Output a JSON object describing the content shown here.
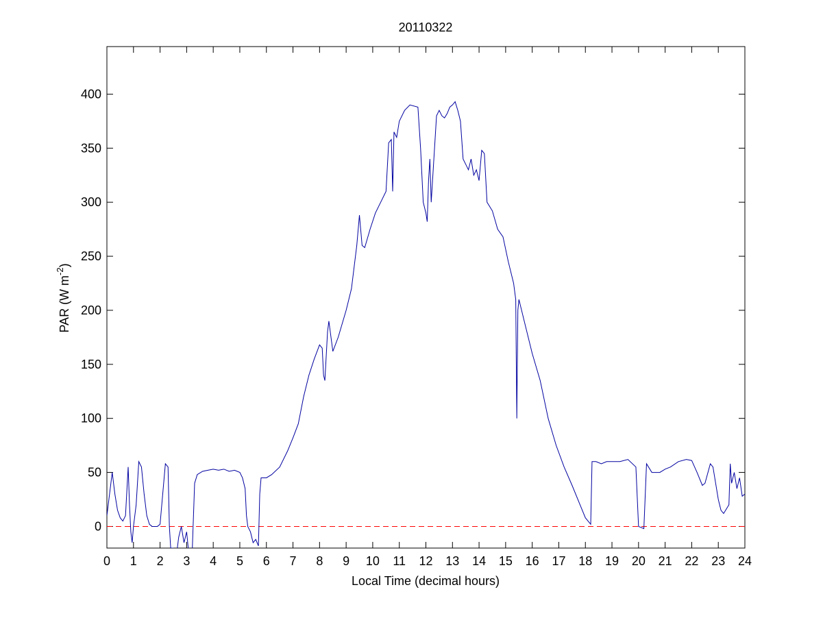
{
  "chart_data": {
    "type": "line",
    "title": "20110322",
    "x_label": "Local Time (decimal hours)",
    "y_label": {
      "text": "PAR (W m",
      "superscript": "-2",
      "suffix": ")"
    },
    "color": "#0000a0",
    "reference_line": {
      "value": 0,
      "color": "#ff0000",
      "dashed": true
    },
    "xlim": [
      0,
      24
    ],
    "xticks": [
      0,
      1,
      2,
      3,
      4,
      5,
      6,
      7,
      8,
      9,
      10,
      11,
      12,
      13,
      14,
      15,
      16,
      17,
      18,
      19,
      20,
      21,
      22,
      23,
      24
    ],
    "ylim": [
      -20,
      444
    ],
    "yticks": [
      0,
      50,
      100,
      150,
      200,
      250,
      300,
      350,
      400
    ],
    "x": [
      0,
      0.1,
      0.2,
      0.3,
      0.4,
      0.5,
      0.6,
      0.7,
      0.8,
      0.85,
      0.9,
      0.95,
      1.0,
      1.1,
      1.2,
      1.3,
      1.4,
      1.5,
      1.6,
      1.7,
      1.9,
      2.0,
      2.1,
      2.2,
      2.3,
      2.35,
      2.4,
      2.5,
      2.6,
      2.7,
      2.8,
      2.9,
      3.0,
      3.1,
      3.2,
      3.3,
      3.4,
      3.6,
      3.8,
      4.0,
      4.2,
      4.4,
      4.6,
      4.8,
      5.0,
      5.1,
      5.2,
      5.25,
      5.3,
      5.4,
      5.5,
      5.6,
      5.7,
      5.75,
      5.8,
      6.0,
      6.2,
      6.5,
      6.8,
      7.0,
      7.2,
      7.4,
      7.6,
      7.8,
      8.0,
      8.1,
      8.15,
      8.2,
      8.3,
      8.35,
      8.5,
      8.7,
      9.0,
      9.2,
      9.3,
      9.4,
      9.5,
      9.6,
      9.7,
      9.9,
      10.1,
      10.3,
      10.5,
      10.6,
      10.7,
      10.75,
      10.8,
      10.9,
      11.0,
      11.2,
      11.4,
      11.7,
      11.8,
      11.9,
      12.0,
      12.05,
      12.1,
      12.15,
      12.2,
      12.3,
      12.4,
      12.5,
      12.6,
      12.7,
      12.8,
      12.9,
      13.0,
      13.1,
      13.2,
      13.3,
      13.4,
      13.5,
      13.6,
      13.7,
      13.8,
      13.9,
      14.0,
      14.1,
      14.2,
      14.3,
      14.5,
      14.7,
      14.9,
      15.1,
      15.3,
      15.38,
      15.42,
      15.46,
      15.5,
      15.7,
      16.0,
      16.3,
      16.6,
      16.9,
      17.2,
      17.5,
      17.8,
      18.0,
      18.2,
      18.25,
      18.4,
      18.6,
      18.8,
      19.0,
      19.3,
      19.6,
      19.9,
      20.0,
      20.2,
      20.3,
      20.5,
      20.8,
      21.0,
      21.2,
      21.5,
      21.8,
      22.0,
      22.2,
      22.4,
      22.5,
      22.7,
      22.8,
      22.9,
      23.0,
      23.1,
      23.2,
      23.4,
      23.45,
      23.5,
      23.6,
      23.7,
      23.8,
      23.9,
      24.0
    ],
    "values": [
      10,
      30,
      50,
      30,
      15,
      8,
      5,
      10,
      55,
      20,
      -5,
      -15,
      0,
      20,
      60,
      55,
      30,
      10,
      2,
      0,
      0,
      2,
      30,
      58,
      55,
      0,
      -20,
      -20,
      -30,
      -10,
      0,
      -15,
      -5,
      -30,
      -30,
      40,
      48,
      51,
      52,
      53,
      52,
      53,
      51,
      52,
      50,
      45,
      35,
      10,
      0,
      -5,
      -15,
      -12,
      -18,
      30,
      45,
      45,
      48,
      55,
      70,
      82,
      95,
      120,
      140,
      155,
      168,
      165,
      140,
      135,
      180,
      190,
      162,
      175,
      200,
      220,
      240,
      260,
      288,
      260,
      258,
      275,
      290,
      300,
      310,
      355,
      358,
      310,
      365,
      360,
      375,
      385,
      390,
      388,
      350,
      300,
      290,
      282,
      320,
      340,
      300,
      340,
      380,
      385,
      380,
      378,
      382,
      388,
      390,
      393,
      385,
      375,
      340,
      335,
      330,
      340,
      325,
      330,
      320,
      348,
      345,
      300,
      292,
      275,
      268,
      245,
      225,
      210,
      100,
      200,
      210,
      190,
      160,
      135,
      100,
      75,
      55,
      38,
      20,
      8,
      2,
      60,
      60,
      58,
      60,
      60,
      60,
      62,
      55,
      0,
      -2,
      58,
      50,
      50,
      53,
      55,
      60,
      62,
      61,
      50,
      38,
      40,
      58,
      55,
      40,
      25,
      15,
      12,
      20,
      58,
      40,
      50,
      35,
      45,
      28,
      30
    ]
  }
}
